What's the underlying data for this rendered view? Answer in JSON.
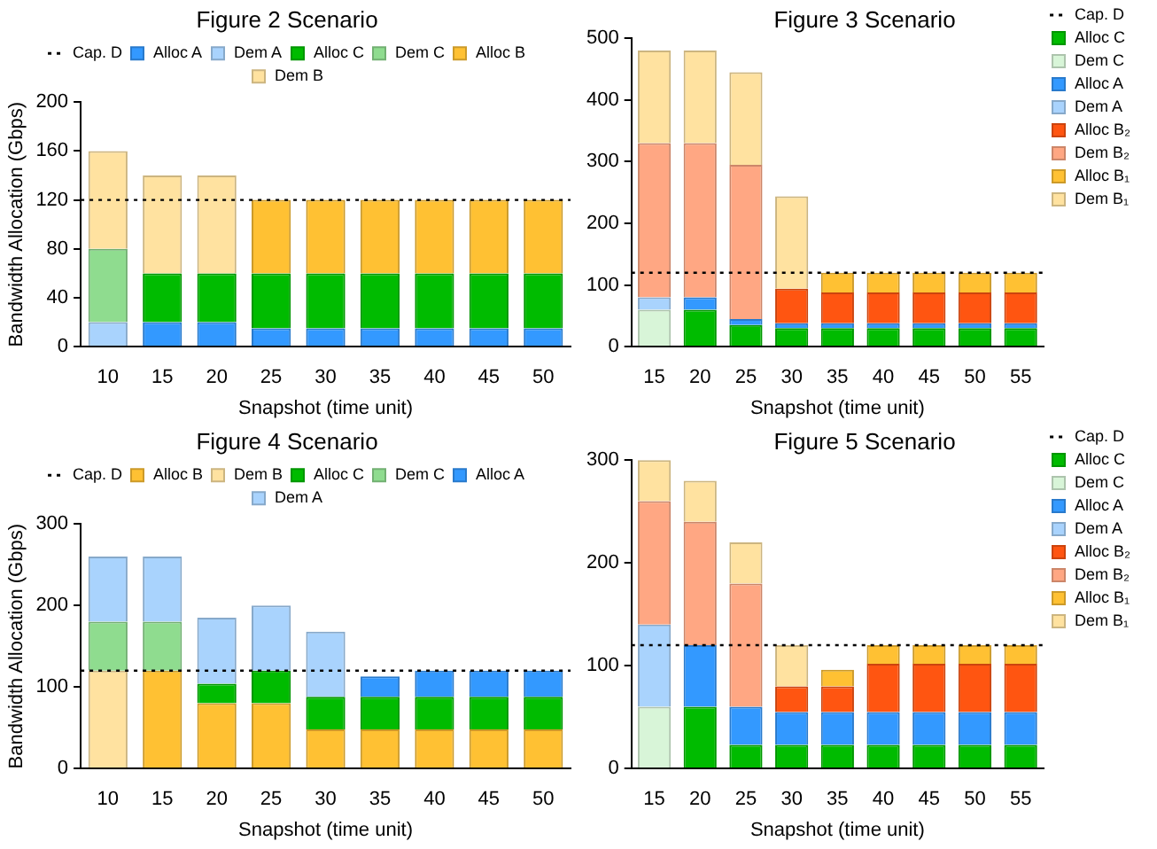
{
  "chart_data": [
    {
      "type": "bar",
      "title": "Figure 2 Scenario",
      "xlabel": "Snapshot (time unit)",
      "ylabel": "Bandwidth Allocation (Gbps)",
      "stacked": true,
      "legend": "top",
      "grid": false,
      "categories": [
        "10",
        "15",
        "20",
        "25",
        "30",
        "35",
        "40",
        "45",
        "50"
      ],
      "ylim": [
        0,
        200
      ],
      "yticks": [
        0,
        40,
        80,
        120,
        160,
        200
      ],
      "ref_lines": [
        {
          "axis": "y",
          "value": 120,
          "label": "Cap. D",
          "color": "#000000",
          "line_style": "dotted"
        }
      ],
      "series": [
        {
          "name": "Alloc A",
          "color": "#3399ff",
          "values": [
            null,
            20,
            20,
            15,
            15,
            15,
            15,
            15,
            15
          ]
        },
        {
          "name": "Dem A",
          "color": "#a9d3fd",
          "values": [
            20,
            null,
            null,
            null,
            null,
            null,
            null,
            null,
            null
          ]
        },
        {
          "name": "Alloc C",
          "color": "#00bb00",
          "values": [
            null,
            40,
            40,
            45,
            45,
            45,
            45,
            45,
            45
          ]
        },
        {
          "name": "Dem C",
          "color": "#8fdc8f",
          "values": [
            60,
            null,
            null,
            null,
            null,
            null,
            null,
            null,
            null
          ]
        },
        {
          "name": "Alloc B",
          "color": "#ffc133",
          "values": [
            null,
            null,
            null,
            60,
            60,
            60,
            60,
            60,
            60
          ]
        },
        {
          "name": "Dem B",
          "color": "#ffe2a0",
          "values": [
            80,
            80,
            80,
            null,
            null,
            null,
            null,
            null,
            null
          ]
        }
      ]
    },
    {
      "type": "bar",
      "title": "Figure 3 Scenario",
      "xlabel": "Snapshot (time unit)",
      "stacked": true,
      "legend": "top right",
      "grid": false,
      "categories": [
        "15",
        "20",
        "25",
        "30",
        "35",
        "40",
        "45",
        "50",
        "55"
      ],
      "ylim": [
        0,
        500
      ],
      "yticks": [
        0,
        100,
        200,
        300,
        400,
        500
      ],
      "ref_lines": [
        {
          "axis": "y",
          "value": 120,
          "label": "Cap. D",
          "color": "#000000",
          "line_style": "dotted"
        }
      ],
      "series": [
        {
          "name": "Alloc C",
          "color": "#00bb00",
          "values": [
            null,
            60,
            35,
            30,
            30,
            30,
            30,
            30,
            30
          ]
        },
        {
          "name": "Dem C",
          "color": "#d8f5d8",
          "values": [
            60,
            null,
            null,
            null,
            null,
            null,
            null,
            null,
            null
          ]
        },
        {
          "name": "Alloc A",
          "color": "#3399ff",
          "values": [
            null,
            20,
            10,
            8,
            8,
            8,
            8,
            8,
            8
          ]
        },
        {
          "name": "Dem A",
          "color": "#a9d3fd",
          "values": [
            20,
            null,
            null,
            null,
            null,
            null,
            null,
            null,
            null
          ]
        },
        {
          "name": "Alloc B₂",
          "color": "#ff5511",
          "values": [
            null,
            null,
            null,
            56,
            50,
            50,
            50,
            50,
            50
          ]
        },
        {
          "name": "Dem B₂",
          "color": "#ffa783",
          "values": [
            250,
            250,
            250,
            null,
            null,
            null,
            null,
            null,
            null
          ]
        },
        {
          "name": "Alloc B₁",
          "color": "#ffc133",
          "values": [
            null,
            null,
            null,
            null,
            32,
            32,
            32,
            32,
            32
          ]
        },
        {
          "name": "Dem B₁",
          "color": "#ffe2a0",
          "values": [
            150,
            150,
            150,
            150,
            null,
            null,
            null,
            null,
            null
          ]
        }
      ]
    },
    {
      "type": "bar",
      "title": "Figure 4 Scenario",
      "xlabel": "Snapshot (time unit)",
      "ylabel": "Bandwidth Allocation (Gbps)",
      "stacked": true,
      "legend": "top",
      "grid": false,
      "categories": [
        "10",
        "15",
        "20",
        "25",
        "30",
        "35",
        "40",
        "45",
        "50"
      ],
      "ylim": [
        0,
        300
      ],
      "yticks": [
        0,
        100,
        200,
        300
      ],
      "ref_lines": [
        {
          "axis": "y",
          "value": 120,
          "label": "Cap. D",
          "color": "#000000",
          "line_style": "dotted"
        }
      ],
      "series": [
        {
          "name": "Alloc B",
          "color": "#ffc133",
          "values": [
            null,
            120,
            80,
            80,
            48,
            48,
            48,
            48,
            48
          ]
        },
        {
          "name": "Dem B",
          "color": "#ffe2a0",
          "values": [
            120,
            null,
            null,
            null,
            null,
            null,
            null,
            null,
            null
          ]
        },
        {
          "name": "Alloc C",
          "color": "#00bb00",
          "values": [
            null,
            null,
            24,
            40,
            40,
            40,
            40,
            40,
            40
          ]
        },
        {
          "name": "Dem C",
          "color": "#8fdc8f",
          "values": [
            60,
            60,
            null,
            null,
            null,
            null,
            null,
            null,
            null
          ]
        },
        {
          "name": "Alloc A",
          "color": "#3399ff",
          "values": [
            null,
            null,
            null,
            null,
            null,
            25,
            32,
            32,
            32
          ]
        },
        {
          "name": "Dem A",
          "color": "#a9d3fd",
          "values": [
            80,
            80,
            81,
            80,
            80,
            null,
            null,
            null,
            null
          ]
        }
      ]
    },
    {
      "type": "bar",
      "title": "Figure 5 Scenario",
      "xlabel": "Snapshot (time unit)",
      "stacked": true,
      "legend": "top right",
      "grid": false,
      "categories": [
        "15",
        "20",
        "25",
        "30",
        "35",
        "40",
        "45",
        "50",
        "55"
      ],
      "ylim": [
        0,
        300
      ],
      "yticks": [
        0,
        100,
        200,
        300
      ],
      "ref_lines": [
        {
          "axis": "y",
          "value": 120,
          "label": "Cap. D",
          "color": "#000000",
          "line_style": "dotted"
        }
      ],
      "series": [
        {
          "name": "Alloc C",
          "color": "#00bb00",
          "values": [
            null,
            60,
            23,
            23,
            23,
            23,
            23,
            23,
            23
          ]
        },
        {
          "name": "Dem C",
          "color": "#d8f5d8",
          "values": [
            60,
            null,
            null,
            null,
            null,
            null,
            null,
            null,
            null
          ]
        },
        {
          "name": "Alloc A",
          "color": "#3399ff",
          "values": [
            null,
            60,
            37,
            32,
            32,
            32,
            32,
            32,
            32
          ]
        },
        {
          "name": "Dem A",
          "color": "#a9d3fd",
          "values": [
            80,
            null,
            null,
            null,
            null,
            null,
            null,
            null,
            null
          ]
        },
        {
          "name": "Alloc B₂",
          "color": "#ff5511",
          "values": [
            null,
            null,
            null,
            25,
            25,
            47,
            47,
            47,
            47
          ]
        },
        {
          "name": "Dem B₂",
          "color": "#ffa783",
          "values": [
            120,
            120,
            120,
            null,
            null,
            null,
            null,
            null,
            null
          ]
        },
        {
          "name": "Alloc B₁",
          "color": "#ffc133",
          "values": [
            null,
            null,
            null,
            null,
            16,
            18,
            18,
            18,
            18
          ]
        },
        {
          "name": "Dem B₁",
          "color": "#ffe2a0",
          "values": [
            40,
            40,
            40,
            40,
            null,
            null,
            null,
            null,
            null
          ]
        }
      ]
    }
  ]
}
